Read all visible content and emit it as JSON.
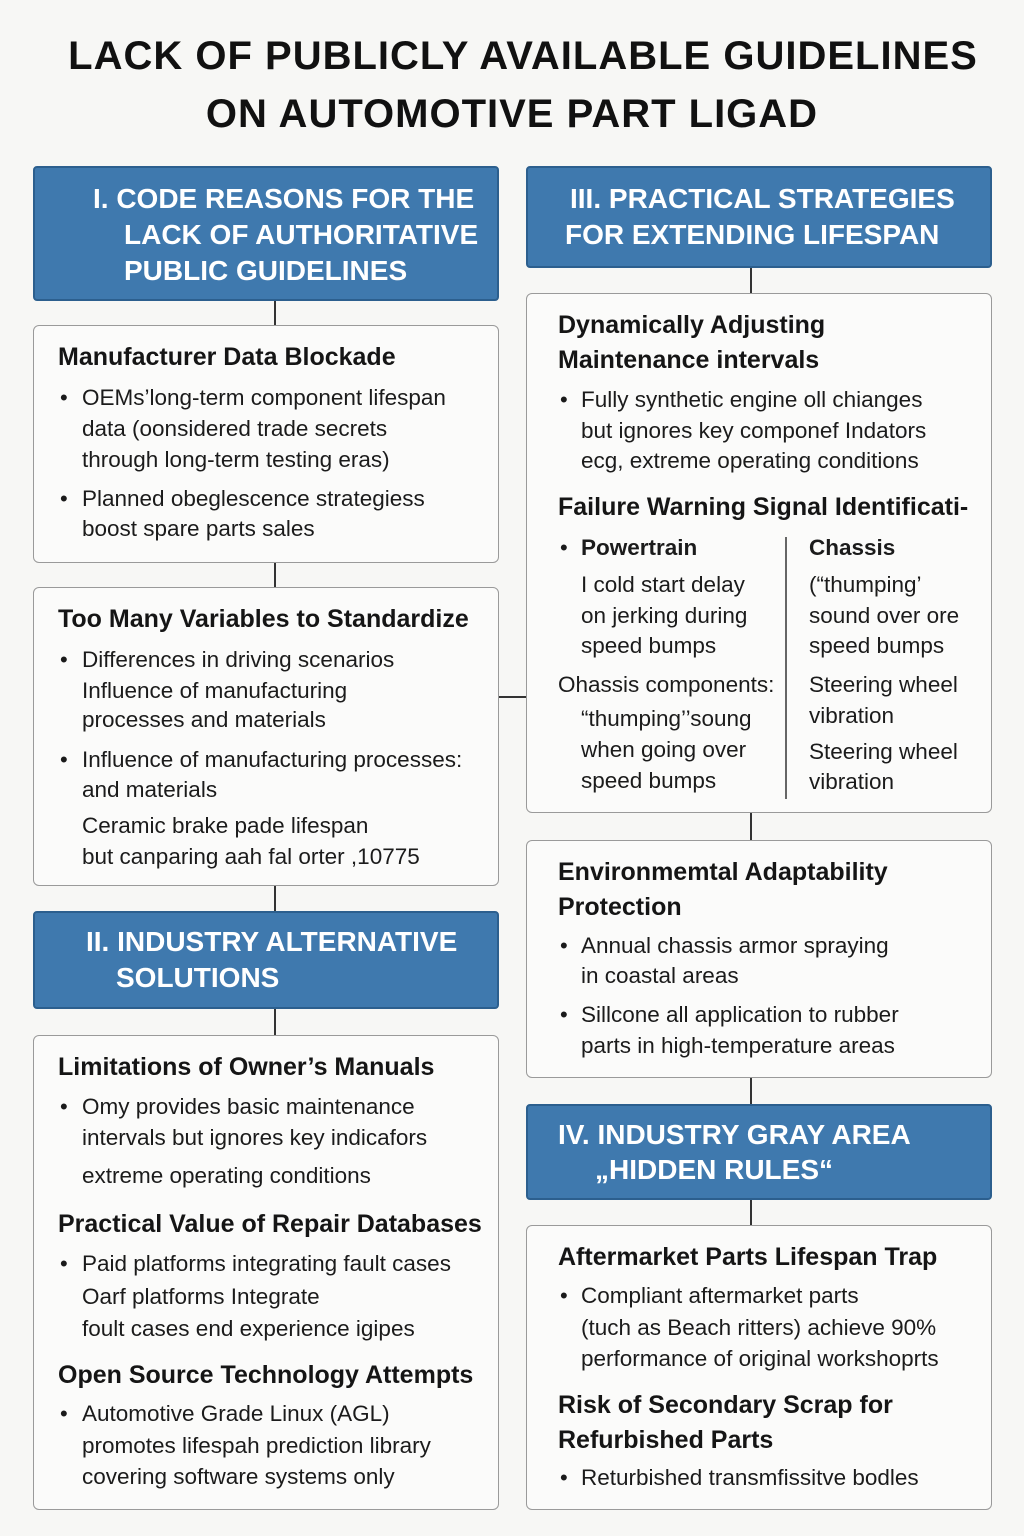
{
  "title": [
    "LACK OF PUBLICLY AVAILABLE GUIDELINES",
    "ON AUTOMOTIVE PART LIGAD"
  ],
  "colors": {
    "header_fill": "#3f79ae",
    "header_text": "#ffffff",
    "box_fill": "#fbfbfa",
    "connector": "#333333"
  },
  "section1": {
    "header": [
      "I. CODE REASONS FOR THE",
      "LACK OF AUTHORITATIVE",
      "PUBLIC GUIDELINES"
    ],
    "box1": {
      "heading": "Manufacturer Data Blockade",
      "lines": [
        "OEMs’long-term component lifespan",
        "data (oonsidered trade secrets",
        "through long-term testing eras)",
        "Planned obeglescence strategiess",
        "boost spare parts sales"
      ]
    },
    "box2": {
      "heading": "Too Many Variables to Standardize",
      "lines": [
        "Differences in driving scenarios",
        "Influence of manufacturing",
        "processes and materials",
        "Influence of manufacturing processes:",
        "and materials",
        "Ceramic brake pade lifespan",
        "but canparing aah fal orter ,10775"
      ]
    }
  },
  "section2": {
    "header": [
      "II. INDUSTRY ALTERNATIVE",
      "SOLUTIONS"
    ],
    "box": {
      "heading1": "Limitations of Owner’s Manuals",
      "lines1": [
        "Omy provides basic maintenance",
        "intervals but ignores key indicafors",
        "extreme operating conditions"
      ],
      "heading2": "Practical Value of Repair Databases",
      "lines2": [
        "Paid platforms integrating fault cases",
        "Oarf platforms Integrate",
        "foult cases end experience igipes"
      ],
      "heading3": "Open Source Technology Attempts",
      "lines3": [
        "Automotive Grade Linux (AGL)",
        "promotes lifespah prediction library",
        "covering software systems only"
      ]
    }
  },
  "section3": {
    "header": [
      "III. PRACTICAL STRATEGIES",
      "FOR EXTENDING LIFESPAN"
    ],
    "box1": {
      "heading": [
        "Dynamically Adjusting",
        "Maintenance intervals"
      ],
      "lines": [
        "Fully synthetic engine oll chianges",
        "but ignores key componef Indators",
        "ecg, extreme operating conditions"
      ],
      "heading2": "Failure Warning Signal Identificati-",
      "col1_heading": "Powertrain",
      "col1_lines": [
        "I cold start delay",
        "on jerking during",
        "speed bumps",
        "Ohassis components:",
        "“thumping’’soung",
        "when going over",
        "speed bumps"
      ],
      "col2_heading": "Chassis",
      "col2_lines": [
        "(“thumping’",
        "sound over ore",
        "speed bumps",
        "Steering wheel",
        "vibration",
        "Steering wheel",
        "vibration"
      ]
    },
    "box2": {
      "heading": [
        "Environmemtal Adaptability",
        "Protection"
      ],
      "lines": [
        "Annual chassis armor spraying",
        "in coastal areas",
        "Sillcone all application to rubber",
        "parts in high-temperature areas"
      ]
    }
  },
  "section4": {
    "header": [
      "IV. INDUSTRY GRAY AREA",
      "„HIDDEN RULES“"
    ],
    "box": {
      "heading1": "Aftermarket Parts Lifespan Trap",
      "lines1": [
        "Compliant aftermarket parts",
        "(tuch as Beach ritters) achieve 90%",
        "performance of original workshoprts"
      ],
      "heading2": [
        "Risk of Secondary Scrap for",
        "Refurbished Parts"
      ],
      "lines2": [
        "Returbished transmfissitve bodles"
      ]
    }
  },
  "bullet": "•"
}
